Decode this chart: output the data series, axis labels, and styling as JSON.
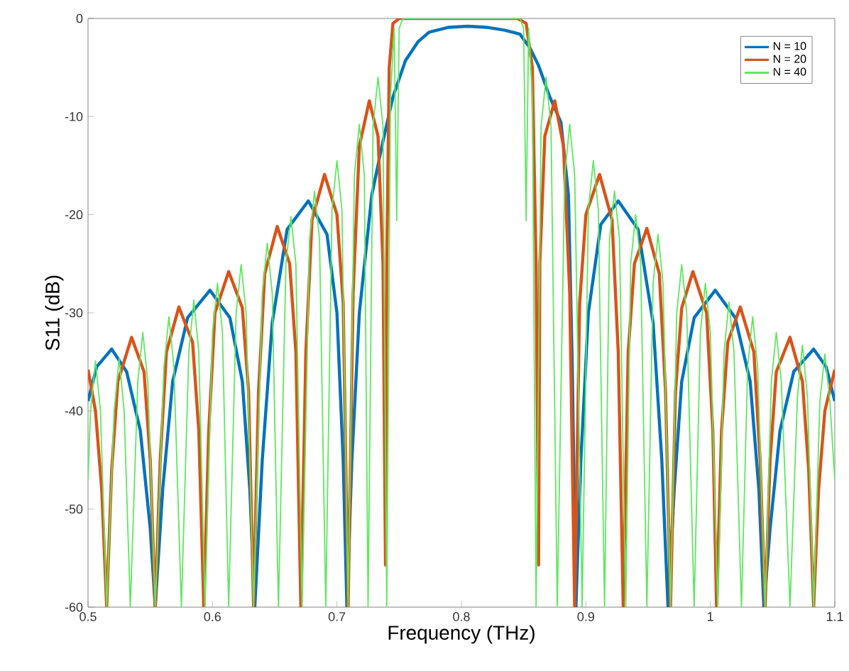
{
  "chart_data": {
    "type": "line",
    "xlabel": "Frequency (THz)",
    "ylabel": "S11 (dB)",
    "xlim": [
      0.5,
      1.1
    ],
    "ylim": [
      -60,
      0
    ],
    "xticks": [
      0.5,
      0.6,
      0.7,
      0.8,
      0.9,
      1,
      1.1
    ],
    "yticks": [
      -60,
      -50,
      -40,
      -30,
      -20,
      -10,
      0
    ],
    "legend": "top right",
    "marker": "none",
    "line_style": "solid",
    "series": [
      {
        "name": "N = 10",
        "color": "#0072bd",
        "x": [
          0.5,
          0.507,
          0.519,
          0.531,
          0.542,
          0.55,
          0.554,
          0.56,
          0.568,
          0.58,
          0.598,
          0.614,
          0.624,
          0.63,
          0.634,
          0.64,
          0.648,
          0.66,
          0.677,
          0.692,
          0.7,
          0.705,
          0.708,
          0.712,
          0.718,
          0.728,
          0.737,
          0.745,
          0.755,
          0.765,
          0.774,
          0.79,
          0.805,
          0.82,
          0.835,
          0.847,
          0.855,
          0.862,
          0.871,
          0.88,
          0.886,
          0.889,
          0.892,
          0.896,
          0.902,
          0.912,
          0.926,
          0.942,
          0.954,
          0.961,
          0.966,
          0.971,
          0.977,
          0.987,
          1.004,
          1.02,
          1.032,
          1.039,
          1.043,
          1.048,
          1.056,
          1.067,
          1.083,
          1.093,
          1.1
        ],
        "values": [
          -39,
          -35.5,
          -33.7,
          -36,
          -42,
          -52,
          -60,
          -48,
          -37,
          -30.5,
          -27.7,
          -30.5,
          -37,
          -48,
          -60,
          -45,
          -31,
          -21.5,
          -18.6,
          -22,
          -30,
          -45,
          -60,
          -45,
          -30,
          -18,
          -12.5,
          -8,
          -4.3,
          -2.4,
          -1.4,
          -0.9,
          -0.8,
          -0.9,
          -1.2,
          -1.6,
          -3,
          -4.8,
          -8,
          -10.6,
          -18,
          -35,
          -60,
          -45,
          -30,
          -21,
          -18.6,
          -21.5,
          -31,
          -45,
          -60,
          -48,
          -37,
          -30.5,
          -27.7,
          -30.5,
          -37,
          -48,
          -60,
          -52,
          -42,
          -36,
          -33.7,
          -35.5,
          -39
        ]
      },
      {
        "name": "N = 20",
        "color": "#d95319",
        "x": [
          0.5,
          0.506,
          0.511,
          0.515,
          0.519,
          0.524,
          0.535,
          0.545,
          0.55,
          0.554,
          0.558,
          0.563,
          0.573,
          0.584,
          0.589,
          0.593,
          0.597,
          0.602,
          0.613,
          0.624,
          0.629,
          0.633,
          0.637,
          0.642,
          0.652,
          0.662,
          0.667,
          0.671,
          0.675,
          0.68,
          0.69,
          0.7,
          0.705,
          0.709,
          0.713,
          0.718,
          0.726,
          0.733,
          0.737,
          0.739,
          0.74,
          0.742,
          0.745,
          0.75,
          0.8,
          0.845,
          0.852,
          0.857,
          0.86,
          0.862,
          0.863,
          0.867,
          0.875,
          0.882,
          0.887,
          0.891,
          0.895,
          0.9,
          0.911,
          0.921,
          0.926,
          0.93,
          0.934,
          0.939,
          0.949,
          0.959,
          0.964,
          0.968,
          0.972,
          0.977,
          0.986,
          0.997,
          1.002,
          1.005,
          1.009,
          1.014,
          1.024,
          1.035,
          1.04,
          1.044,
          1.048,
          1.053,
          1.064,
          1.074,
          1.079,
          1.083,
          1.087,
          1.092,
          1.1
        ],
        "values": [
          -35.8,
          -40,
          -48,
          -60,
          -46,
          -37,
          -32.5,
          -36,
          -45,
          -60,
          -45,
          -34,
          -29.4,
          -33,
          -42,
          -60,
          -42,
          -30,
          -25.8,
          -29.5,
          -38,
          -60,
          -38,
          -26,
          -21.2,
          -25,
          -34,
          -60,
          -34,
          -20.5,
          -15.9,
          -20,
          -29,
          -60,
          -28,
          -13,
          -8.4,
          -12,
          -25,
          -55.7,
          -25,
          -5,
          -0.5,
          0,
          0,
          0,
          -0.5,
          -5,
          -25,
          -55.7,
          -25,
          -12,
          -8.4,
          -13,
          -28,
          -60,
          -29,
          -20,
          -15.9,
          -20.5,
          -34,
          -60,
          -34,
          -25,
          -21.4,
          -26,
          -38,
          -60,
          -38,
          -29.5,
          -25.8,
          -30,
          -42,
          -60,
          -42,
          -33,
          -29.4,
          -34,
          -45,
          -60,
          -45,
          -36,
          -32.5,
          -37,
          -46,
          -60,
          -48,
          -40,
          -35.8
        ]
      },
      {
        "name": "N = 40",
        "color": "#5ee85e",
        "x": [
          0.5,
          0.502,
          0.506,
          0.51,
          0.515,
          0.521,
          0.525,
          0.529,
          0.534,
          0.54,
          0.544,
          0.548,
          0.554,
          0.561,
          0.565,
          0.569,
          0.575,
          0.581,
          0.585,
          0.589,
          0.594,
          0.6,
          0.604,
          0.608,
          0.613,
          0.619,
          0.623,
          0.627,
          0.633,
          0.64,
          0.644,
          0.648,
          0.653,
          0.659,
          0.663,
          0.667,
          0.672,
          0.678,
          0.682,
          0.686,
          0.691,
          0.696,
          0.7,
          0.704,
          0.709,
          0.714,
          0.718,
          0.722,
          0.725,
          0.729,
          0.733,
          0.737,
          0.74,
          0.743,
          0.746,
          0.748,
          0.75,
          0.753,
          0.8,
          0.847,
          0.85,
          0.852,
          0.854,
          0.857,
          0.86,
          0.864,
          0.868,
          0.872,
          0.877,
          0.883,
          0.887,
          0.891,
          0.897,
          0.902,
          0.906,
          0.91,
          0.915,
          0.919,
          0.923,
          0.927,
          0.932,
          0.936,
          0.94,
          0.944,
          0.949,
          0.954,
          0.958,
          0.962,
          0.968,
          0.973,
          0.977,
          0.981,
          0.987,
          0.992,
          0.996,
          1.0,
          1.006,
          1.011,
          1.015,
          1.019,
          1.025,
          1.03,
          1.034,
          1.038,
          1.044,
          1.049,
          1.053,
          1.057,
          1.064,
          1.07,
          1.074,
          1.078,
          1.083,
          1.088,
          1.092,
          1.096,
          1.1
        ],
        "values": [
          -47,
          -40,
          -34.9,
          -40,
          -60,
          -40,
          -34.7,
          -40,
          -60,
          -37,
          -32,
          -37,
          -60,
          -35.5,
          -30.4,
          -35.5,
          -60,
          -34,
          -28.7,
          -34,
          -60,
          -32,
          -27,
          -32,
          -60,
          -30,
          -25.1,
          -30,
          -60,
          -28,
          -22.9,
          -28,
          -60,
          -25,
          -20.2,
          -25,
          -60,
          -22.5,
          -17.6,
          -22.5,
          -60,
          -19.5,
          -14.5,
          -19.5,
          -60,
          -16,
          -10.8,
          -16,
          -60,
          -11,
          -6,
          -11,
          -60,
          -8,
          -1,
          -20.6,
          -1,
          0,
          0,
          0,
          -1,
          -20.6,
          -1,
          -8,
          -60,
          -11,
          -6,
          -11,
          -60,
          -16,
          -10.8,
          -16,
          -60,
          -19.5,
          -14.5,
          -19.5,
          -60,
          -22.5,
          -17.6,
          -22.5,
          -60,
          -25,
          -20,
          -25,
          -60,
          -27,
          -22,
          -27,
          -60,
          -30,
          -25.1,
          -30,
          -60,
          -32,
          -27,
          -32,
          -60,
          -34,
          -28.9,
          -34,
          -60,
          -35.5,
          -30.4,
          -35.5,
          -60,
          -37,
          -32,
          -37,
          -60,
          -38.5,
          -33.3,
          -38.5,
          -60,
          -39,
          -34.2,
          -39,
          -47
        ]
      }
    ]
  }
}
